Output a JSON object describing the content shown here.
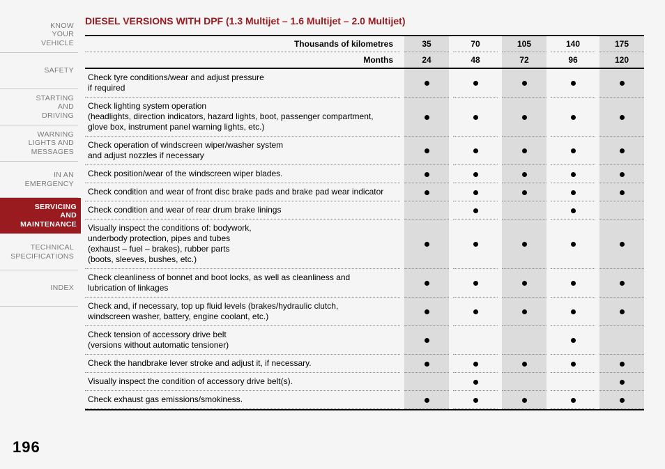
{
  "sidebar": {
    "items": [
      {
        "label": "KNOW\nYOUR\nVEHICLE",
        "active": false
      },
      {
        "label": "SAFETY",
        "active": false
      },
      {
        "label": "STARTING\nAND\nDRIVING",
        "active": false
      },
      {
        "label": "WARNING\nLIGHTS AND\nMESSAGES",
        "active": false
      },
      {
        "label": "IN AN\nEMERGENCY",
        "active": false
      },
      {
        "label": "SERVICING\nAND\nMAINTENANCE",
        "active": true
      },
      {
        "label": "TECHNICAL\nSPECIFICATIONS",
        "active": false
      },
      {
        "label": "INDEX",
        "active": false
      }
    ]
  },
  "title": "DIESEL VERSIONS WITH DPF (1.3 Multijet – 1.6 Multijet – 2.0 Multijet)",
  "table": {
    "header_rows": [
      {
        "label": "Thousands of kilometres",
        "values": [
          "35",
          "70",
          "105",
          "140",
          "175"
        ]
      },
      {
        "label": "Months",
        "values": [
          "24",
          "48",
          "72",
          "96",
          "120"
        ]
      }
    ],
    "shaded_cols": [
      true,
      false,
      true,
      false,
      true
    ],
    "rows": [
      {
        "desc": "Check tyre conditions/wear and adjust pressure\nif required",
        "marks": [
          true,
          true,
          true,
          true,
          true
        ]
      },
      {
        "desc": "Check lighting system operation\n(headlights, direction indicators, hazard lights, boot, passenger compartment,\nglove box, instrument panel warning lights, etc.)",
        "marks": [
          true,
          true,
          true,
          true,
          true
        ]
      },
      {
        "desc": "Check operation of windscreen wiper/washer system\nand adjust nozzles if necessary",
        "marks": [
          true,
          true,
          true,
          true,
          true
        ]
      },
      {
        "desc": "Check position/wear of the windscreen wiper blades.",
        "marks": [
          true,
          true,
          true,
          true,
          true
        ]
      },
      {
        "desc": "Check condition and wear of front disc brake pads and brake pad wear indicator",
        "marks": [
          true,
          true,
          true,
          true,
          true
        ]
      },
      {
        "desc": "Check condition and wear of rear drum brake linings",
        "marks": [
          false,
          true,
          false,
          true,
          false
        ]
      },
      {
        "desc": "Visually inspect the conditions of: bodywork,\nunderbody protection, pipes and tubes\n(exhaust – fuel – brakes), rubber parts\n(boots, sleeves, bushes, etc.)",
        "marks": [
          true,
          true,
          true,
          true,
          true
        ]
      },
      {
        "desc": "Check cleanliness of bonnet and boot locks, as well as cleanliness and\nlubrication of linkages",
        "marks": [
          true,
          true,
          true,
          true,
          true
        ]
      },
      {
        "desc": "Check and, if necessary, top up fluid levels (brakes/hydraulic clutch,\nwindscreen washer, battery, engine coolant, etc.)",
        "marks": [
          true,
          true,
          true,
          true,
          true
        ]
      },
      {
        "desc": "Check tension of accessory drive belt\n(versions without automatic tensioner)",
        "marks": [
          true,
          false,
          false,
          true,
          false
        ]
      },
      {
        "desc": "Check the handbrake lever stroke and adjust it, if necessary.",
        "marks": [
          true,
          true,
          true,
          true,
          true
        ]
      },
      {
        "desc": "Visually inspect the condition of accessory drive belt(s).",
        "marks": [
          false,
          true,
          false,
          false,
          true
        ]
      },
      {
        "desc": "Check exhaust gas emissions/smokiness.",
        "marks": [
          true,
          true,
          true,
          true,
          true
        ]
      }
    ]
  },
  "page_number": "196"
}
